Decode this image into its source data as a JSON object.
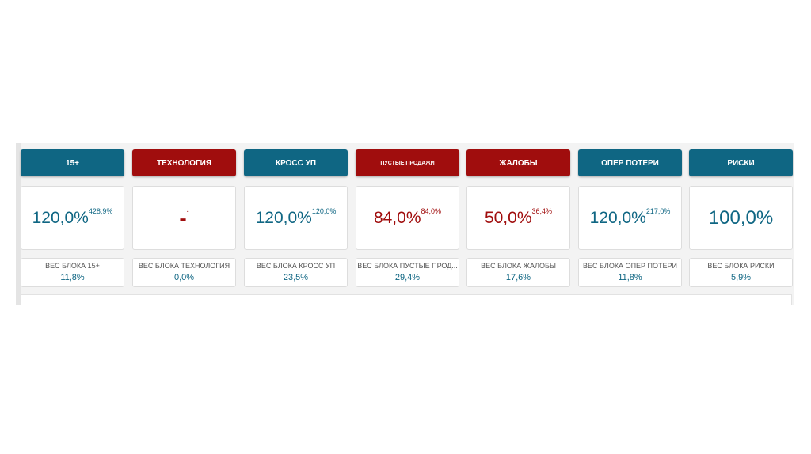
{
  "cards": [
    {
      "header": "15+",
      "value": "120,0%",
      "sup": "428,9%",
      "weight_label": "ВЕС БЛОКА 15+",
      "weight": "11,8%",
      "color": "#0f6683"
    },
    {
      "header": "ТЕХНОЛОГИЯ",
      "value": "-",
      "sup": "-",
      "weight_label": "ВЕС БЛОКА ТЕХНОЛОГИЯ",
      "weight": "0,0%",
      "color": "#a00d0d"
    },
    {
      "header": "КРОСС УП",
      "value": "120,0%",
      "sup": "120,0%",
      "weight_label": "ВЕС БЛОКА КРОСС УП",
      "weight": "23,5%",
      "color": "#0f6683"
    },
    {
      "header": "ПУСТЫЕ ПРОДАЖИ",
      "value": "84,0%",
      "sup": "84,0%",
      "weight_label": "ВЕС БЛОКА ПУСТЫЕ ПРОД...",
      "weight": "29,4%",
      "color": "#a00d0d"
    },
    {
      "header": "ЖАЛОБЫ",
      "value": "50,0%",
      "sup": "36,4%",
      "weight_label": "ВЕС БЛОКА ЖАЛОБЫ",
      "weight": "17,6%",
      "color": "#a00d0d"
    },
    {
      "header": "ОПЕР ПОТЕРИ",
      "value": "120,0%",
      "sup": "217,0%",
      "weight_label": "ВЕС БЛОКА ОПЕР ПОТЕРИ",
      "weight": "11,8%",
      "color": "#0f6683"
    },
    {
      "header": "РИСКИ",
      "value": "100,0%",
      "weight_label": "ВЕС БЛОКА РИСКИ",
      "weight": "5,9%",
      "color": "#0f6683"
    }
  ]
}
